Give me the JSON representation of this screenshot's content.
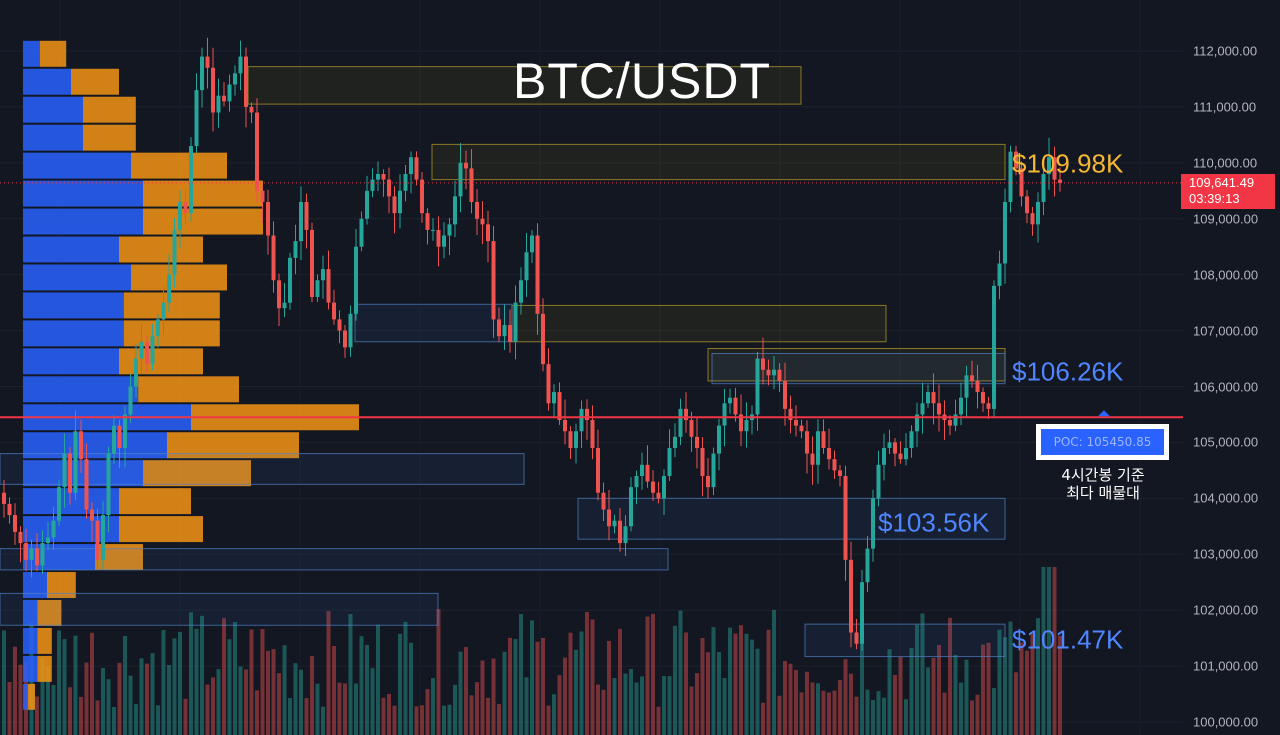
{
  "chart_data": {
    "type": "candlestick",
    "title": "BTC/USDT",
    "y_axis": {
      "ticks": [
        "100,000.00",
        "101,000.00",
        "102,000.00",
        "103,000.00",
        "104,000.00",
        "105,000.00",
        "106,000.00",
        "107,000.00",
        "108,000.00",
        "109,000.00",
        "110,000.00",
        "111,000.00",
        "112,000.00"
      ],
      "tick_values": [
        100000,
        101000,
        102000,
        103000,
        104000,
        105000,
        106000,
        107000,
        108000,
        109000,
        110000,
        111000,
        112000
      ],
      "range": [
        99700,
        112800
      ],
      "side": "right"
    },
    "current_price": {
      "value": "109,641.49",
      "countdown": "03:39:13",
      "color": "#f23645"
    },
    "poc": {
      "label": "POC: 105450.85",
      "value": 105450.85,
      "note_line1": "4시간봉 기준",
      "note_line2": "최다 매물대",
      "line_color": "#f23645"
    },
    "levels": [
      {
        "label": "$109.98K",
        "value": 109980,
        "color": "#f5b731"
      },
      {
        "label": "$106.26K",
        "value": 106260,
        "color": "#4f86ff"
      },
      {
        "label": "$103.56K",
        "value": 103560,
        "color": "#4f86ff"
      },
      {
        "label": "$101.47K",
        "value": 101470,
        "color": "#4f86ff"
      }
    ],
    "zones": [
      {
        "kind": "supply",
        "top": 111720,
        "bottom": 111050
      },
      {
        "kind": "supply",
        "top": 110330,
        "bottom": 109700
      },
      {
        "kind": "supply",
        "top": 107450,
        "bottom": 106800
      },
      {
        "kind": "supply",
        "top": 106680,
        "bottom": 106100
      },
      {
        "kind": "demand",
        "top": 107470,
        "bottom": 106800
      },
      {
        "kind": "demand",
        "top": 106590,
        "bottom": 106050
      },
      {
        "kind": "demand",
        "top": 104800,
        "bottom": 104250
      },
      {
        "kind": "demand",
        "top": 104000,
        "bottom": 103270
      },
      {
        "kind": "demand",
        "top": 103100,
        "bottom": 102720
      },
      {
        "kind": "demand",
        "top": 102300,
        "bottom": 101730
      },
      {
        "kind": "demand",
        "top": 101750,
        "bottom": 101170
      }
    ],
    "volume_profile": [
      {
        "low": 111700,
        "high": 112200,
        "up": 0.07,
        "down": 0.11
      },
      {
        "low": 111200,
        "high": 111700,
        "up": 0.2,
        "down": 0.2
      },
      {
        "low": 110700,
        "high": 111200,
        "up": 0.25,
        "down": 0.22
      },
      {
        "low": 110200,
        "high": 110700,
        "up": 0.25,
        "down": 0.22
      },
      {
        "low": 109700,
        "high": 110200,
        "up": 0.45,
        "down": 0.4
      },
      {
        "low": 109200,
        "high": 109700,
        "up": 0.5,
        "down": 0.5
      },
      {
        "low": 108700,
        "high": 109200,
        "up": 0.5,
        "down": 0.5
      },
      {
        "low": 108200,
        "high": 108700,
        "up": 0.4,
        "down": 0.35
      },
      {
        "low": 107700,
        "high": 108200,
        "up": 0.45,
        "down": 0.4
      },
      {
        "low": 107200,
        "high": 107700,
        "up": 0.42,
        "down": 0.4
      },
      {
        "low": 106700,
        "high": 107200,
        "up": 0.42,
        "down": 0.4
      },
      {
        "low": 106200,
        "high": 106700,
        "up": 0.4,
        "down": 0.35
      },
      {
        "low": 105700,
        "high": 106200,
        "up": 0.48,
        "down": 0.42
      },
      {
        "low": 105200,
        "high": 105700,
        "up": 0.7,
        "down": 0.7
      },
      {
        "low": 104700,
        "high": 105200,
        "up": 0.6,
        "down": 0.55
      },
      {
        "low": 104200,
        "high": 104700,
        "up": 0.5,
        "down": 0.45
      },
      {
        "low": 103700,
        "high": 104200,
        "up": 0.4,
        "down": 0.3
      },
      {
        "low": 103200,
        "high": 103700,
        "up": 0.4,
        "down": 0.35
      },
      {
        "low": 102700,
        "high": 103200,
        "up": 0.3,
        "down": 0.2
      },
      {
        "low": 102200,
        "high": 102700,
        "up": 0.1,
        "down": 0.12
      },
      {
        "low": 101700,
        "high": 102200,
        "up": 0.06,
        "down": 0.1
      },
      {
        "low": 101200,
        "high": 101700,
        "up": 0.06,
        "down": 0.06
      },
      {
        "low": 100700,
        "high": 101200,
        "up": 0.06,
        "down": 0.06
      },
      {
        "low": 100200,
        "high": 100700,
        "up": 0.02,
        "down": 0.03
      }
    ],
    "volume_peaks": [
      {
        "bar": 190,
        "level": 0.6
      },
      {
        "bar": 197,
        "level": 0.3
      }
    ],
    "candles_close": [
      103900,
      103700,
      103400,
      103200,
      102900,
      103100,
      102800,
      103200,
      103300,
      103600,
      104200,
      104800,
      104100,
      105200,
      104700,
      103800,
      103600,
      102900,
      103700,
      104800,
      105300,
      104900,
      105500,
      106000,
      106500,
      106800,
      106400,
      106900,
      107200,
      107500,
      108000,
      108800,
      109300,
      109100,
      110300,
      111300,
      111900,
      111700,
      110900,
      111200,
      111100,
      111400,
      111600,
      111900,
      111000,
      110900,
      109500,
      109300,
      108700,
      107900,
      107400,
      107500,
      108300,
      108600,
      109300,
      108800,
      107600,
      107900,
      108100,
      107500,
      107200,
      107000,
      106700,
      107300,
      108500,
      109000,
      109500,
      109700,
      109800,
      109700,
      109400,
      109100,
      109500,
      109800,
      110100,
      109700,
      109100,
      108800,
      108800,
      108500,
      108700,
      108900,
      109400,
      110000,
      109900,
      109300,
      109000,
      108900,
      108600,
      107200,
      106900,
      107100,
      106800,
      107500,
      107900,
      108400,
      108700,
      107300,
      106400,
      105700,
      105900,
      105400,
      105200,
      104900,
      105200,
      105600,
      105400,
      104900,
      104100,
      103800,
      103500,
      103600,
      103200,
      103500,
      104200,
      104400,
      104600,
      104300,
      104100,
      104000,
      104400,
      104900,
      105100,
      105600,
      105400,
      105100,
      104900,
      104400,
      104200,
      104800,
      105300,
      105700,
      105800,
      105500,
      105200,
      105400,
      105500,
      106500,
      106300,
      106200,
      106300,
      106100,
      105600,
      105400,
      105300,
      105200,
      104800,
      104600,
      105200,
      104900,
      104700,
      104500,
      104400,
      102900,
      101600,
      101400,
      102500,
      103100,
      104000,
      104600,
      104900,
      105000,
      104800,
      104700,
      104900,
      105200,
      105500,
      105700,
      105900,
      105700,
      105500,
      105400,
      105300,
      105500,
      105800,
      106200,
      106100,
      105900,
      105700,
      105600,
      107800,
      108200,
      109300,
      110200,
      109900,
      109400,
      109100,
      108900,
      109300,
      109800,
      110100,
      109700,
      109641
    ]
  }
}
